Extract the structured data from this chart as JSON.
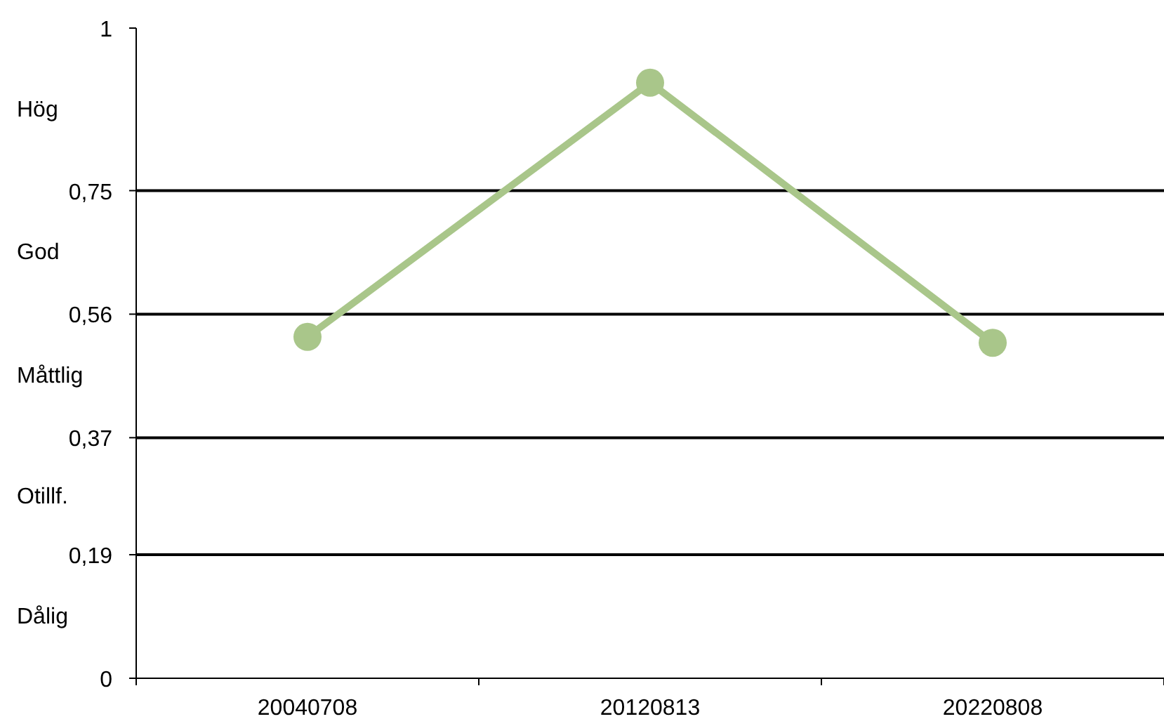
{
  "chart_data": {
    "type": "line",
    "categories": [
      "20040708",
      "20120813",
      "20220808"
    ],
    "series": [
      {
        "color": "#a9c68a",
        "values": [
          0.525,
          0.916,
          0.516
        ]
      }
    ],
    "ylim": [
      0,
      1
    ],
    "yticks": [
      {
        "value": 0,
        "label": "0"
      },
      {
        "value": 0.19,
        "label": "0,19"
      },
      {
        "value": 0.37,
        "label": "0,37"
      },
      {
        "value": 0.56,
        "label": "0,56"
      },
      {
        "value": 0.75,
        "label": "0,75"
      },
      {
        "value": 1,
        "label": "1"
      }
    ],
    "ref_lines": [
      {
        "axis": "y",
        "value": 0.19,
        "color": "#000000"
      },
      {
        "axis": "y",
        "value": 0.37,
        "color": "#000000"
      },
      {
        "axis": "y",
        "value": 0.56,
        "color": "#000000"
      },
      {
        "axis": "y",
        "value": 0.75,
        "color": "#000000"
      }
    ],
    "annotations": [
      "Hög",
      "God",
      "Måttlig",
      "Otillf.",
      "Dålig"
    ],
    "marker": "circle"
  }
}
